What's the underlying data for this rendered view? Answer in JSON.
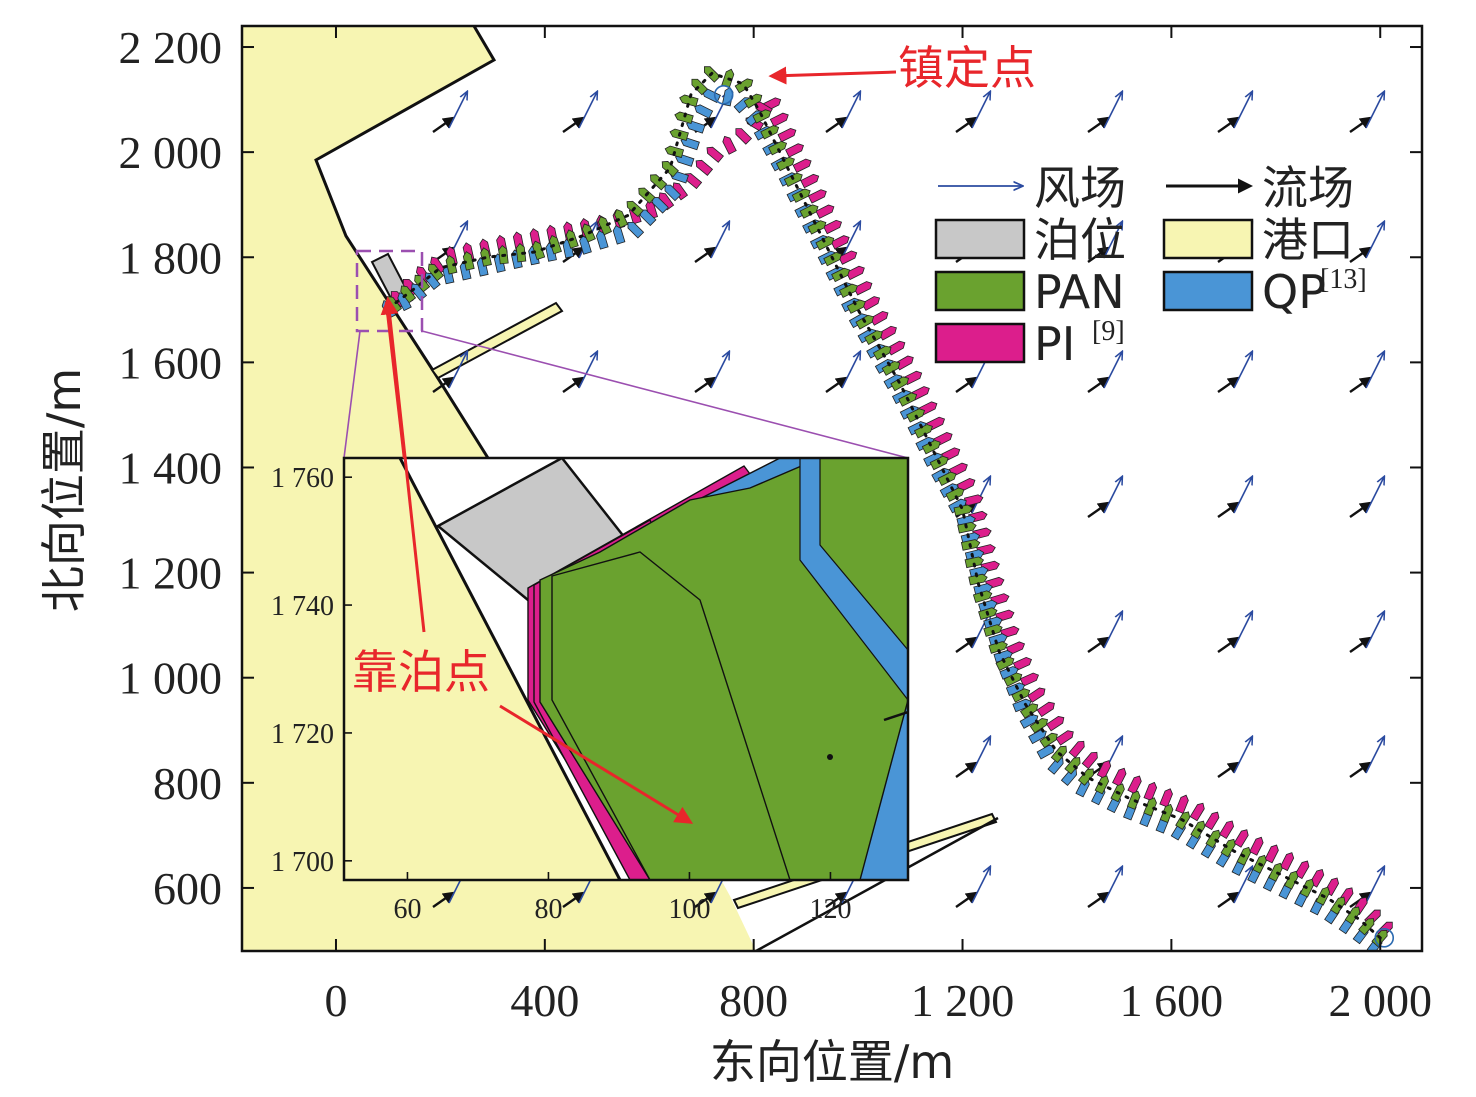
{
  "chart_data": {
    "type": "scatter",
    "xlabel": "东向位置/m",
    "ylabel": "北向位置/m",
    "xlim": [
      -180,
      2080
    ],
    "ylim": [
      480,
      2240
    ],
    "x_ticks": [
      {
        "v": 0,
        "label": "0"
      },
      {
        "v": 400,
        "label": "400"
      },
      {
        "v": 800,
        "label": "800"
      },
      {
        "v": 1200,
        "label": "1 200"
      },
      {
        "v": 1600,
        "label": "1 600"
      },
      {
        "v": 2000,
        "label": "2 000"
      }
    ],
    "y_ticks": [
      {
        "v": 600,
        "label": "600"
      },
      {
        "v": 800,
        "label": "800"
      },
      {
        "v": 1000,
        "label": "1 000"
      },
      {
        "v": 1200,
        "label": "1 200"
      },
      {
        "v": 1400,
        "label": "1 400"
      },
      {
        "v": 1600,
        "label": "1 600"
      },
      {
        "v": 1800,
        "label": "1 800"
      },
      {
        "v": 2000,
        "label": "2 000"
      },
      {
        "v": 2200,
        "label": "2 200"
      }
    ],
    "colors": {
      "wind": "#2b4ba0",
      "current": "#111111",
      "berth": "#c8c8c8",
      "port": "#f7f5b2",
      "PAN": "#6aa22f",
      "QP": "#4a95d6",
      "PI": "#dc1e8c",
      "annotation": "#e8262b",
      "zoom": "#9b4fb0"
    },
    "legend": {
      "items": [
        {
          "key": "wind",
          "label": "风场",
          "kind": "arrow",
          "sup": ""
        },
        {
          "key": "current",
          "label": "流场",
          "kind": "arrow",
          "sup": ""
        },
        {
          "key": "berth",
          "label": "泊位",
          "kind": "patch",
          "sup": ""
        },
        {
          "key": "port",
          "label": "港口",
          "kind": "patch",
          "sup": ""
        },
        {
          "key": "PAN",
          "label": "PAN",
          "kind": "patch",
          "sup": ""
        },
        {
          "key": "QP",
          "label": "QP",
          "kind": "patch",
          "sup": "[13]"
        },
        {
          "key": "PI",
          "label": "PI",
          "kind": "patch",
          "sup": "[9]"
        }
      ]
    },
    "annotations": {
      "anchor_point": {
        "label": "镇定点",
        "x": 800,
        "y": 2090
      },
      "berthing_point": {
        "label": "靠泊点",
        "x": 110,
        "y": 1710
      }
    },
    "start_point": {
      "x": 2000,
      "y": 505
    },
    "series": [
      {
        "name": "PAN",
        "points": [
          [
            2000,
            505
          ],
          [
            1960,
            540
          ],
          [
            1900,
            580
          ],
          [
            1820,
            620
          ],
          [
            1720,
            670
          ],
          [
            1620,
            730
          ],
          [
            1520,
            770
          ],
          [
            1440,
            810
          ],
          [
            1380,
            860
          ],
          [
            1320,
            950
          ],
          [
            1270,
            1050
          ],
          [
            1230,
            1180
          ],
          [
            1200,
            1320
          ],
          [
            1150,
            1420
          ],
          [
            1080,
            1560
          ],
          [
            1000,
            1700
          ],
          [
            920,
            1860
          ],
          [
            860,
            1980
          ],
          [
            810,
            2080
          ],
          [
            780,
            2130
          ],
          [
            720,
            2150
          ],
          [
            680,
            2110
          ],
          [
            640,
            1970
          ],
          [
            560,
            1880
          ],
          [
            470,
            1840
          ],
          [
            380,
            1810
          ],
          [
            290,
            1800
          ],
          [
            200,
            1780
          ],
          [
            150,
            1740
          ],
          [
            110,
            1710
          ]
        ]
      },
      {
        "name": "QP",
        "points": [
          [
            2000,
            500
          ],
          [
            1960,
            530
          ],
          [
            1900,
            570
          ],
          [
            1820,
            610
          ],
          [
            1720,
            660
          ],
          [
            1620,
            720
          ],
          [
            1520,
            760
          ],
          [
            1440,
            800
          ],
          [
            1380,
            850
          ],
          [
            1330,
            940
          ],
          [
            1290,
            1040
          ],
          [
            1250,
            1170
          ],
          [
            1215,
            1310
          ],
          [
            1160,
            1410
          ],
          [
            1090,
            1550
          ],
          [
            1010,
            1690
          ],
          [
            930,
            1850
          ],
          [
            870,
            1970
          ],
          [
            815,
            2070
          ],
          [
            780,
            2110
          ],
          [
            730,
            2120
          ],
          [
            700,
            2060
          ],
          [
            660,
            1940
          ],
          [
            580,
            1860
          ],
          [
            480,
            1830
          ],
          [
            380,
            1810
          ],
          [
            290,
            1790
          ],
          [
            200,
            1770
          ],
          [
            150,
            1730
          ],
          [
            110,
            1710
          ]
        ]
      },
      {
        "name": "PI",
        "points": [
          [
            2000,
            510
          ],
          [
            1960,
            550
          ],
          [
            1900,
            590
          ],
          [
            1830,
            630
          ],
          [
            1730,
            680
          ],
          [
            1630,
            740
          ],
          [
            1530,
            780
          ],
          [
            1450,
            820
          ],
          [
            1390,
            870
          ],
          [
            1330,
            960
          ],
          [
            1285,
            1060
          ],
          [
            1245,
            1190
          ],
          [
            1210,
            1330
          ],
          [
            1160,
            1430
          ],
          [
            1090,
            1570
          ],
          [
            1010,
            1710
          ],
          [
            930,
            1870
          ],
          [
            870,
            1990
          ],
          [
            820,
            2090
          ],
          [
            790,
            2040
          ],
          [
            760,
            2010
          ],
          [
            720,
            1990
          ],
          [
            670,
            1930
          ],
          [
            600,
            1880
          ],
          [
            500,
            1850
          ],
          [
            400,
            1830
          ],
          [
            300,
            1810
          ],
          [
            210,
            1790
          ],
          [
            150,
            1750
          ],
          [
            110,
            1710
          ]
        ]
      }
    ],
    "inset": {
      "xlim": [
        51,
        131
      ],
      "ylim": [
        1697,
        1763
      ],
      "x_ticks": [
        {
          "v": 60,
          "label": "60"
        },
        {
          "v": 80,
          "label": "80"
        },
        {
          "v": 100,
          "label": "100"
        },
        {
          "v": 120,
          "label": "120"
        }
      ],
      "y_ticks": [
        {
          "v": 1700,
          "label": "1 700"
        },
        {
          "v": 1720,
          "label": "1 720"
        },
        {
          "v": 1740,
          "label": "1 740"
        },
        {
          "v": 1760,
          "label": "1 760"
        }
      ]
    }
  }
}
